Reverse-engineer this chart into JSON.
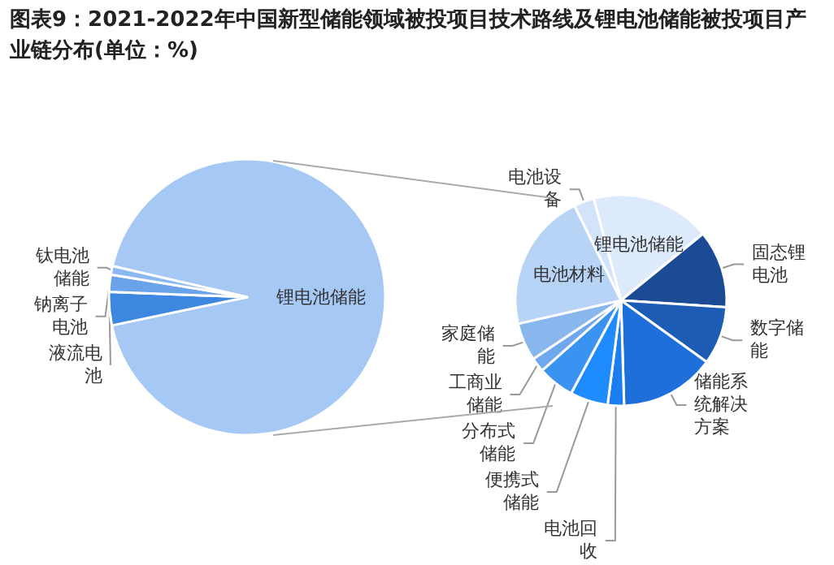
{
  "chart_data": [
    {
      "type": "pie",
      "title": "图表9：2021-2022年中国新型储能领域被投项目技术路线及锂电池储能被投项目产业链分布(单位：%)",
      "categories": [
        "锂电池储能",
        "液流电池",
        "钠离子电池",
        "钛电池储能"
      ],
      "values": [
        93.1,
        3.9,
        2.0,
        1.0
      ],
      "colors": [
        "#a6c8f5",
        "#3d87e0",
        "#6aa3ea",
        "#8ab8f0"
      ]
    },
    {
      "type": "pie",
      "categories": [
        "锂电池储能",
        "固态锂电池",
        "数字储能",
        "储能系统解决方案",
        "电池回收",
        "便携式储能",
        "分布式储能",
        "工商业储能",
        "家庭储能",
        "电池材料",
        "电池设备"
      ],
      "values": [
        18.3,
        11.9,
        8.9,
        14.6,
        2.5,
        5.8,
        5.6,
        2.2,
        5.8,
        21.3,
        3.1
      ],
      "colors": [
        "#ddeafc",
        "#1a4b94",
        "#1c5cb4",
        "#1e6fd9",
        "#1a7ef0",
        "#1e8cff",
        "#3a93f0",
        "#6fa8ec",
        "#8ab6ee",
        "#b7d4f7",
        "#d3e4fa"
      ]
    }
  ]
}
